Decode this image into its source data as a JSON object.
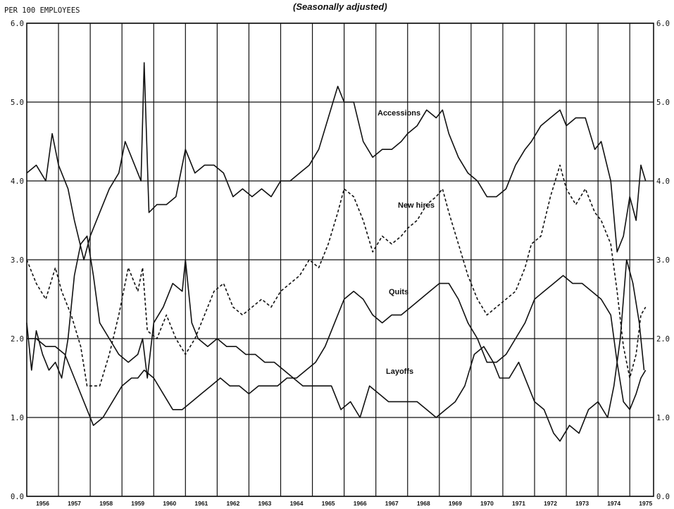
{
  "chart_data": {
    "type": "line",
    "subtitle": "(Seasonally adjusted)",
    "ylabel": "PER 100 EMPLOYEES",
    "ylim": [
      0,
      6
    ],
    "yticks": [
      "0.0",
      "1.0",
      "2.0",
      "3.0",
      "4.0",
      "5.0",
      "6.0"
    ],
    "x_years": [
      "1956",
      "1957",
      "1958",
      "1959",
      "1960",
      "1961",
      "1962",
      "1963",
      "1964",
      "1965",
      "1966",
      "1967",
      "1968",
      "1969",
      "1970",
      "1971",
      "1972",
      "1973",
      "1974",
      "1975"
    ],
    "xlim": [
      1956.0,
      1975.75
    ],
    "grid": true,
    "series": [
      {
        "name": "Accessions",
        "style": "solid",
        "points": [
          [
            1956.0,
            4.1
          ],
          [
            1956.3,
            4.2
          ],
          [
            1956.6,
            4.0
          ],
          [
            1956.8,
            4.6
          ],
          [
            1957.0,
            4.2
          ],
          [
            1957.3,
            3.9
          ],
          [
            1957.5,
            3.5
          ],
          [
            1957.8,
            3.0
          ],
          [
            1958.0,
            3.3
          ],
          [
            1958.3,
            3.6
          ],
          [
            1958.6,
            3.9
          ],
          [
            1958.9,
            4.1
          ],
          [
            1959.1,
            4.5
          ],
          [
            1959.4,
            4.2
          ],
          [
            1959.6,
            4.0
          ],
          [
            1959.7,
            5.5
          ],
          [
            1959.85,
            3.6
          ],
          [
            1960.1,
            3.7
          ],
          [
            1960.4,
            3.7
          ],
          [
            1960.7,
            3.8
          ],
          [
            1961.0,
            4.4
          ],
          [
            1961.3,
            4.1
          ],
          [
            1961.6,
            4.2
          ],
          [
            1961.9,
            4.2
          ],
          [
            1962.2,
            4.1
          ],
          [
            1962.5,
            3.8
          ],
          [
            1962.8,
            3.9
          ],
          [
            1963.1,
            3.8
          ],
          [
            1963.4,
            3.9
          ],
          [
            1963.7,
            3.8
          ],
          [
            1964.0,
            4.0
          ],
          [
            1964.3,
            4.0
          ],
          [
            1964.6,
            4.1
          ],
          [
            1964.9,
            4.2
          ],
          [
            1965.2,
            4.4
          ],
          [
            1965.5,
            4.8
          ],
          [
            1965.8,
            5.2
          ],
          [
            1966.0,
            5.0
          ],
          [
            1966.3,
            5.0
          ],
          [
            1966.6,
            4.5
          ],
          [
            1966.9,
            4.3
          ],
          [
            1967.2,
            4.4
          ],
          [
            1967.5,
            4.4
          ],
          [
            1967.8,
            4.5
          ],
          [
            1968.0,
            4.6
          ],
          [
            1968.3,
            4.7
          ],
          [
            1968.6,
            4.9
          ],
          [
            1968.9,
            4.8
          ],
          [
            1969.1,
            4.9
          ],
          [
            1969.3,
            4.6
          ],
          [
            1969.6,
            4.3
          ],
          [
            1969.9,
            4.1
          ],
          [
            1970.2,
            4.0
          ],
          [
            1970.5,
            3.8
          ],
          [
            1970.8,
            3.8
          ],
          [
            1971.1,
            3.9
          ],
          [
            1971.4,
            4.2
          ],
          [
            1971.7,
            4.4
          ],
          [
            1971.9,
            4.5
          ],
          [
            1972.2,
            4.7
          ],
          [
            1972.5,
            4.8
          ],
          [
            1972.8,
            4.9
          ],
          [
            1973.0,
            4.7
          ],
          [
            1973.3,
            4.8
          ],
          [
            1973.6,
            4.8
          ],
          [
            1973.9,
            4.4
          ],
          [
            1974.1,
            4.5
          ],
          [
            1974.4,
            4.0
          ],
          [
            1974.6,
            3.1
          ],
          [
            1974.8,
            3.3
          ],
          [
            1975.0,
            3.8
          ],
          [
            1975.2,
            3.5
          ],
          [
            1975.35,
            4.2
          ],
          [
            1975.5,
            4.0
          ]
        ]
      },
      {
        "name": "New hires",
        "style": "dashed",
        "points": [
          [
            1956.0,
            3.0
          ],
          [
            1956.3,
            2.7
          ],
          [
            1956.6,
            2.5
          ],
          [
            1956.9,
            2.9
          ],
          [
            1957.1,
            2.6
          ],
          [
            1957.4,
            2.3
          ],
          [
            1957.7,
            1.9
          ],
          [
            1957.9,
            1.4
          ],
          [
            1958.3,
            1.4
          ],
          [
            1958.6,
            1.8
          ],
          [
            1958.9,
            2.3
          ],
          [
            1959.2,
            2.9
          ],
          [
            1959.5,
            2.6
          ],
          [
            1959.65,
            2.9
          ],
          [
            1959.8,
            2.1
          ],
          [
            1960.1,
            2.0
          ],
          [
            1960.4,
            2.3
          ],
          [
            1960.7,
            2.0
          ],
          [
            1961.0,
            1.8
          ],
          [
            1961.3,
            2.0
          ],
          [
            1961.6,
            2.3
          ],
          [
            1961.9,
            2.6
          ],
          [
            1962.2,
            2.7
          ],
          [
            1962.5,
            2.4
          ],
          [
            1962.8,
            2.3
          ],
          [
            1963.1,
            2.4
          ],
          [
            1963.4,
            2.5
          ],
          [
            1963.7,
            2.4
          ],
          [
            1964.0,
            2.6
          ],
          [
            1964.3,
            2.7
          ],
          [
            1964.6,
            2.8
          ],
          [
            1964.9,
            3.0
          ],
          [
            1965.2,
            2.9
          ],
          [
            1965.5,
            3.2
          ],
          [
            1965.8,
            3.6
          ],
          [
            1966.0,
            3.9
          ],
          [
            1966.3,
            3.8
          ],
          [
            1966.6,
            3.5
          ],
          [
            1966.9,
            3.1
          ],
          [
            1967.2,
            3.3
          ],
          [
            1967.5,
            3.2
          ],
          [
            1967.8,
            3.3
          ],
          [
            1968.0,
            3.4
          ],
          [
            1968.3,
            3.5
          ],
          [
            1968.6,
            3.7
          ],
          [
            1968.9,
            3.8
          ],
          [
            1969.1,
            3.9
          ],
          [
            1969.3,
            3.6
          ],
          [
            1969.6,
            3.2
          ],
          [
            1969.9,
            2.8
          ],
          [
            1970.2,
            2.5
          ],
          [
            1970.5,
            2.3
          ],
          [
            1970.8,
            2.4
          ],
          [
            1971.1,
            2.5
          ],
          [
            1971.4,
            2.6
          ],
          [
            1971.7,
            2.9
          ],
          [
            1971.9,
            3.2
          ],
          [
            1972.2,
            3.3
          ],
          [
            1972.5,
            3.8
          ],
          [
            1972.8,
            4.2
          ],
          [
            1973.0,
            3.9
          ],
          [
            1973.3,
            3.7
          ],
          [
            1973.6,
            3.9
          ],
          [
            1973.9,
            3.6
          ],
          [
            1974.1,
            3.5
          ],
          [
            1974.4,
            3.2
          ],
          [
            1974.6,
            2.6
          ],
          [
            1974.8,
            1.9
          ],
          [
            1975.0,
            1.5
          ],
          [
            1975.2,
            1.8
          ],
          [
            1975.35,
            2.3
          ],
          [
            1975.5,
            2.4
          ]
        ]
      },
      {
        "name": "Quits",
        "style": "solid",
        "points": [
          [
            1956.0,
            2.0
          ],
          [
            1956.3,
            2.0
          ],
          [
            1956.6,
            1.9
          ],
          [
            1956.9,
            1.9
          ],
          [
            1957.2,
            1.8
          ],
          [
            1957.5,
            1.5
          ],
          [
            1957.7,
            1.3
          ],
          [
            1957.9,
            1.1
          ],
          [
            1958.1,
            0.9
          ],
          [
            1958.4,
            1.0
          ],
          [
            1958.7,
            1.2
          ],
          [
            1959.0,
            1.4
          ],
          [
            1959.3,
            1.5
          ],
          [
            1959.5,
            1.5
          ],
          [
            1959.7,
            1.6
          ],
          [
            1960.0,
            1.5
          ],
          [
            1960.3,
            1.3
          ],
          [
            1960.6,
            1.1
          ],
          [
            1960.9,
            1.1
          ],
          [
            1961.2,
            1.2
          ],
          [
            1961.5,
            1.3
          ],
          [
            1961.8,
            1.4
          ],
          [
            1962.1,
            1.5
          ],
          [
            1962.4,
            1.4
          ],
          [
            1962.7,
            1.4
          ],
          [
            1963.0,
            1.3
          ],
          [
            1963.3,
            1.4
          ],
          [
            1963.6,
            1.4
          ],
          [
            1963.9,
            1.4
          ],
          [
            1964.2,
            1.5
          ],
          [
            1964.5,
            1.5
          ],
          [
            1964.8,
            1.6
          ],
          [
            1965.1,
            1.7
          ],
          [
            1965.4,
            1.9
          ],
          [
            1965.7,
            2.2
          ],
          [
            1966.0,
            2.5
          ],
          [
            1966.3,
            2.6
          ],
          [
            1966.6,
            2.5
          ],
          [
            1966.9,
            2.3
          ],
          [
            1967.2,
            2.2
          ],
          [
            1967.5,
            2.3
          ],
          [
            1967.8,
            2.3
          ],
          [
            1968.1,
            2.4
          ],
          [
            1968.4,
            2.5
          ],
          [
            1968.7,
            2.6
          ],
          [
            1969.0,
            2.7
          ],
          [
            1969.3,
            2.7
          ],
          [
            1969.6,
            2.5
          ],
          [
            1969.9,
            2.2
          ],
          [
            1970.2,
            2.0
          ],
          [
            1970.5,
            1.7
          ],
          [
            1970.8,
            1.7
          ],
          [
            1971.1,
            1.8
          ],
          [
            1971.4,
            2.0
          ],
          [
            1971.7,
            2.2
          ],
          [
            1972.0,
            2.5
          ],
          [
            1972.3,
            2.6
          ],
          [
            1972.6,
            2.7
          ],
          [
            1972.9,
            2.8
          ],
          [
            1973.2,
            2.7
          ],
          [
            1973.5,
            2.7
          ],
          [
            1973.8,
            2.6
          ],
          [
            1974.1,
            2.5
          ],
          [
            1974.4,
            2.3
          ],
          [
            1974.6,
            1.7
          ],
          [
            1974.8,
            1.2
          ],
          [
            1975.0,
            1.1
          ],
          [
            1975.2,
            1.3
          ],
          [
            1975.35,
            1.5
          ],
          [
            1975.5,
            1.6
          ]
        ]
      },
      {
        "name": "Layoffs",
        "style": "solid",
        "points": [
          [
            1956.0,
            2.2
          ],
          [
            1956.15,
            1.6
          ],
          [
            1956.3,
            2.1
          ],
          [
            1956.5,
            1.8
          ],
          [
            1956.7,
            1.6
          ],
          [
            1956.9,
            1.7
          ],
          [
            1957.1,
            1.5
          ],
          [
            1957.3,
            2.0
          ],
          [
            1957.5,
            2.8
          ],
          [
            1957.7,
            3.2
          ],
          [
            1957.9,
            3.3
          ],
          [
            1958.1,
            2.8
          ],
          [
            1958.3,
            2.2
          ],
          [
            1958.6,
            2.0
          ],
          [
            1958.9,
            1.8
          ],
          [
            1959.2,
            1.7
          ],
          [
            1959.5,
            1.8
          ],
          [
            1959.65,
            2.0
          ],
          [
            1959.8,
            1.5
          ],
          [
            1960.0,
            2.2
          ],
          [
            1960.3,
            2.4
          ],
          [
            1960.6,
            2.7
          ],
          [
            1960.9,
            2.6
          ],
          [
            1961.0,
            3.0
          ],
          [
            1961.2,
            2.2
          ],
          [
            1961.4,
            2.0
          ],
          [
            1961.7,
            1.9
          ],
          [
            1962.0,
            2.0
          ],
          [
            1962.3,
            1.9
          ],
          [
            1962.6,
            1.9
          ],
          [
            1962.9,
            1.8
          ],
          [
            1963.2,
            1.8
          ],
          [
            1963.5,
            1.7
          ],
          [
            1963.8,
            1.7
          ],
          [
            1964.1,
            1.6
          ],
          [
            1964.4,
            1.5
          ],
          [
            1964.7,
            1.4
          ],
          [
            1965.0,
            1.4
          ],
          [
            1965.3,
            1.4
          ],
          [
            1965.6,
            1.4
          ],
          [
            1965.9,
            1.1
          ],
          [
            1966.2,
            1.2
          ],
          [
            1966.5,
            1.0
          ],
          [
            1966.8,
            1.4
          ],
          [
            1967.1,
            1.3
          ],
          [
            1967.4,
            1.2
          ],
          [
            1967.7,
            1.2
          ],
          [
            1968.0,
            1.2
          ],
          [
            1968.3,
            1.2
          ],
          [
            1968.6,
            1.1
          ],
          [
            1968.9,
            1.0
          ],
          [
            1969.2,
            1.1
          ],
          [
            1969.5,
            1.2
          ],
          [
            1969.8,
            1.4
          ],
          [
            1970.1,
            1.8
          ],
          [
            1970.4,
            1.9
          ],
          [
            1970.7,
            1.7
          ],
          [
            1970.9,
            1.5
          ],
          [
            1971.2,
            1.5
          ],
          [
            1971.5,
            1.7
          ],
          [
            1971.8,
            1.4
          ],
          [
            1972.0,
            1.2
          ],
          [
            1972.3,
            1.1
          ],
          [
            1972.6,
            0.8
          ],
          [
            1972.8,
            0.7
          ],
          [
            1973.1,
            0.9
          ],
          [
            1973.4,
            0.8
          ],
          [
            1973.7,
            1.1
          ],
          [
            1974.0,
            1.2
          ],
          [
            1974.3,
            1.0
          ],
          [
            1974.5,
            1.4
          ],
          [
            1974.7,
            2.0
          ],
          [
            1974.9,
            3.0
          ],
          [
            1975.1,
            2.7
          ],
          [
            1975.3,
            2.2
          ],
          [
            1975.45,
            1.6
          ]
        ]
      }
    ],
    "annotations": [
      "Accessions",
      "New hires",
      "Quits",
      "Layoffs"
    ]
  }
}
